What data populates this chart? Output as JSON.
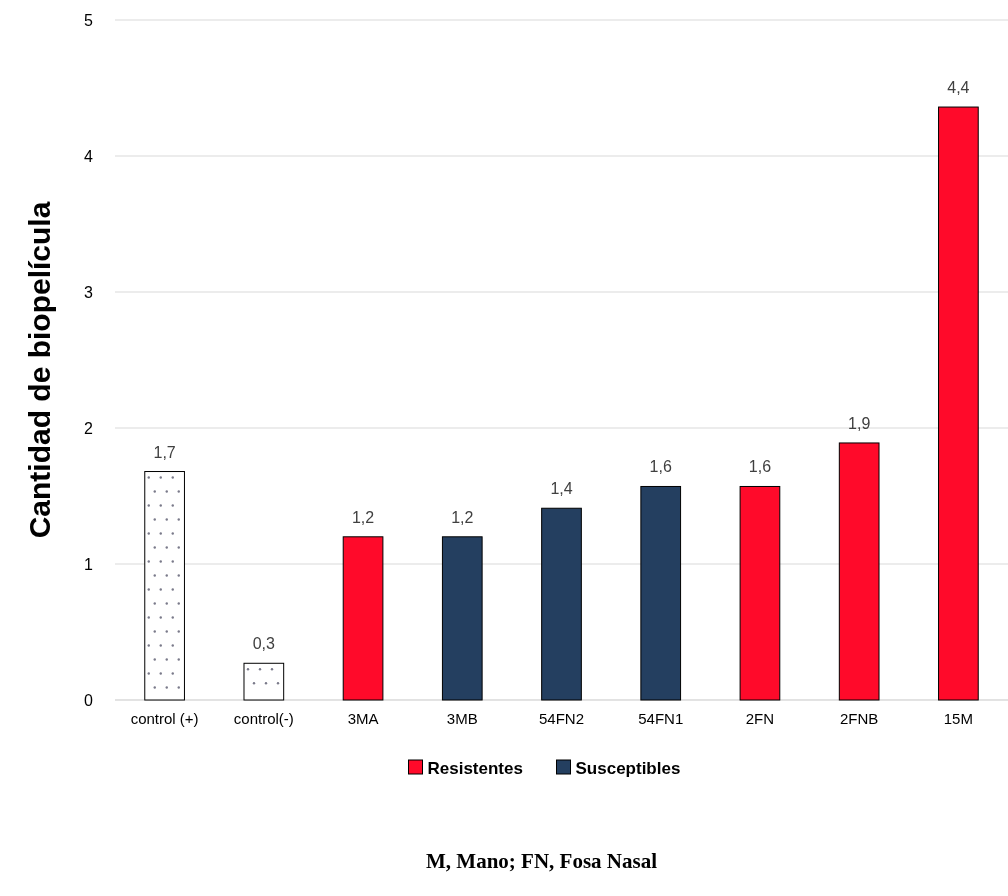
{
  "chart_data": {
    "type": "bar",
    "ylabel": "Cantidad de biopelícula",
    "categories": [
      "control (+)",
      "control(-)",
      "3MA",
      "3MB",
      "54FN2",
      "54FN1",
      "2FN",
      "2FNB",
      "15M"
    ],
    "ylim": [
      0,
      5
    ],
    "yticks": [
      0,
      1,
      2,
      3,
      4,
      5
    ],
    "grid": "y",
    "legend": "bottom",
    "series": [
      {
        "color": "#ffffff",
        "values": [
          1.68,
          0.27,
          null,
          null,
          null,
          null,
          null,
          null,
          null
        ],
        "value_labels": [
          "1,7",
          "0,3",
          null,
          null,
          null,
          null,
          null,
          null,
          null
        ]
      },
      {
        "name": "Resistentes",
        "color": "#ff0a2a",
        "values": [
          null,
          null,
          1.2,
          null,
          null,
          null,
          1.57,
          1.89,
          4.36
        ],
        "value_labels": [
          null,
          null,
          "1,2",
          null,
          null,
          null,
          "1,6",
          "1,9",
          "4,4"
        ]
      },
      {
        "name": "Susceptibles",
        "color": "#243f60",
        "values": [
          null,
          null,
          null,
          1.2,
          1.41,
          1.57,
          null,
          null,
          null
        ],
        "value_labels": [
          null,
          null,
          null,
          "1,2",
          "1,4",
          "1,6",
          null,
          null,
          null
        ]
      }
    ],
    "annotations": [
      "M, Mano; FN, Fosa Nasal"
    ]
  }
}
